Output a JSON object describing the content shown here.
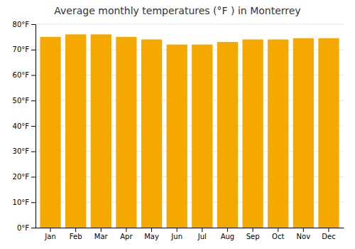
{
  "chart_data": {
    "type": "bar",
    "title": "Average monthly temperatures (°F ) in Monterrey",
    "categories": [
      "Jan",
      "Feb",
      "Mar",
      "Apr",
      "May",
      "Jun",
      "Jul",
      "Aug",
      "Sep",
      "Oct",
      "Nov",
      "Dec"
    ],
    "values": [
      75,
      76,
      76,
      75,
      74,
      72,
      72,
      73,
      74,
      74,
      74.5,
      74.5
    ],
    "color": "#F5A800",
    "ylim": [
      0,
      80
    ],
    "yticks": [
      {
        "value": 0,
        "label": "0°F"
      },
      {
        "value": 10,
        "label": "10°F"
      },
      {
        "value": 20,
        "label": "20°F"
      },
      {
        "value": 30,
        "label": "30°F"
      },
      {
        "value": 40,
        "label": "40°F"
      },
      {
        "value": 50,
        "label": "50°F"
      },
      {
        "value": 60,
        "label": "60°F"
      },
      {
        "value": 70,
        "label": "70°F"
      },
      {
        "value": 80,
        "label": "80°F"
      }
    ],
    "grid": true
  }
}
